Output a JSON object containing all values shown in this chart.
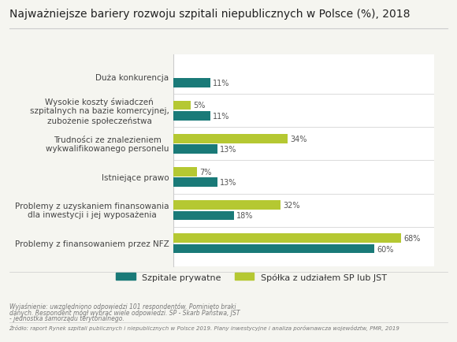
{
  "title": "Najważniejsze bariery rozwoju szpitali niepublicznych w Polsce (%), 2018",
  "categories": [
    "Problemy z finansowaniem przez NFZ",
    "Problemy z uzyskaniem finansowania\ndla inwestycji i jej wyposażenia",
    "Istniejące prawo",
    "Trudności ze znalezieniem\nwykwalifikowanego personelu",
    "Wysokie koszty świadczeń\nszpitalnych na bazie komercyjnej,\nzubożenie społeczeństwa",
    "Duża konkurencja"
  ],
  "private": [
    60,
    18,
    13,
    13,
    11,
    11
  ],
  "public": [
    68,
    32,
    7,
    34,
    5,
    0
  ],
  "private_color": "#1a7a78",
  "public_color": "#b5c832",
  "background_color": "#f5f5f0",
  "plot_bg_color": "#ffffff",
  "title_fontsize": 10,
  "label_fontsize": 7.5,
  "bar_label_fontsize": 7,
  "legend_private": "Szpitale prywatne",
  "legend_public": "Spółka z udziałem SP lub JST",
  "footnote1": "Wyjaśnienie: uwzględniono odpowiedzi 101 respondentów. Pominięto braki",
  "footnote2": "danych. Respondent mógł wybrać wiele odpowiedzi. SP - Skarb Państwa, JST",
  "footnote3": "- jednostka samorządu terytorialnego.",
  "source": "Źródło: raport Rynek szpitali publicznych i niepublicznych w Polsce 2019. Plany inwestycyjne i analiza porównawcza województw, PMR, 2019"
}
